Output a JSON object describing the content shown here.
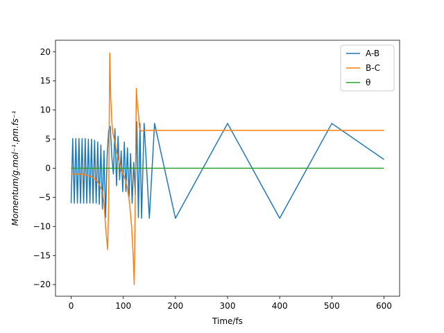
{
  "chart_data": {
    "type": "line",
    "title": "",
    "xlabel": "Time/fs",
    "ylabel": "Momentum/g.mol⁻¹.pm.fs⁻¹",
    "xlim": [
      -30,
      630
    ],
    "ylim": [
      -22,
      22
    ],
    "xticks": [
      0,
      100,
      200,
      300,
      400,
      500,
      600
    ],
    "yticks": [
      -20,
      -15,
      -10,
      -5,
      0,
      5,
      10,
      15,
      20
    ],
    "grid": false,
    "legend_position": "top-right",
    "series": [
      {
        "name": "A-B",
        "color": "#1f77b4",
        "x": [
          0,
          3,
          6,
          9,
          12,
          15,
          18,
          21,
          24,
          27,
          30,
          33,
          36,
          39,
          42,
          45,
          48,
          51,
          54,
          57,
          60,
          63,
          66,
          69,
          72,
          75,
          78,
          81,
          84,
          87,
          90,
          93,
          96,
          99,
          102,
          105,
          108,
          111,
          114,
          117,
          120,
          123,
          126,
          129,
          132,
          135,
          140,
          150,
          160,
          200,
          300,
          400,
          500,
          600
        ],
        "y": [
          -6,
          5.1,
          -6,
          5.1,
          -6,
          5.1,
          -6,
          5.1,
          -6,
          5.1,
          -6,
          5.0,
          -6,
          5.0,
          -6,
          4.8,
          -6,
          4.5,
          -6.2,
          4.0,
          -7,
          3,
          -8.5,
          2,
          6.5,
          7.2,
          2,
          -1,
          6.8,
          -3,
          5.5,
          -2,
          3,
          -4,
          4.5,
          -4,
          3.5,
          -5,
          2.5,
          -6,
          1,
          -4.5,
          8,
          -8.5,
          7.7,
          -8.6,
          7.7,
          -8.6,
          7.7,
          -8.6,
          7.7,
          -8.6,
          7.7,
          1.5
        ]
      },
      {
        "name": "B-C",
        "color": "#ff7f0e",
        "x": [
          0,
          10,
          20,
          30,
          40,
          50,
          55,
          60,
          63,
          66,
          70,
          72,
          74,
          76,
          78,
          80,
          84,
          88,
          92,
          96,
          100,
          104,
          108,
          112,
          116,
          119,
          121,
          123,
          125,
          127,
          129,
          131,
          133,
          135,
          140,
          150,
          200,
          300,
          400,
          500,
          600
        ],
        "y": [
          -1,
          -1,
          -1,
          -1.2,
          -1.5,
          -2.2,
          -3,
          -4,
          -6,
          -10,
          -14,
          -6,
          19.8,
          12,
          8,
          6,
          4.5,
          2.5,
          1,
          -0.5,
          -1,
          -2,
          -3.5,
          -6,
          -10,
          -15,
          -20,
          -5,
          13.7,
          11,
          9.5,
          7,
          6.5,
          6.4,
          6.5,
          6.5,
          6.5,
          6.5,
          6.5,
          6.5,
          6.5
        ]
      },
      {
        "name": "θ",
        "color": "#2ca02c",
        "x": [
          0,
          600
        ],
        "y": [
          0,
          0
        ]
      }
    ]
  }
}
